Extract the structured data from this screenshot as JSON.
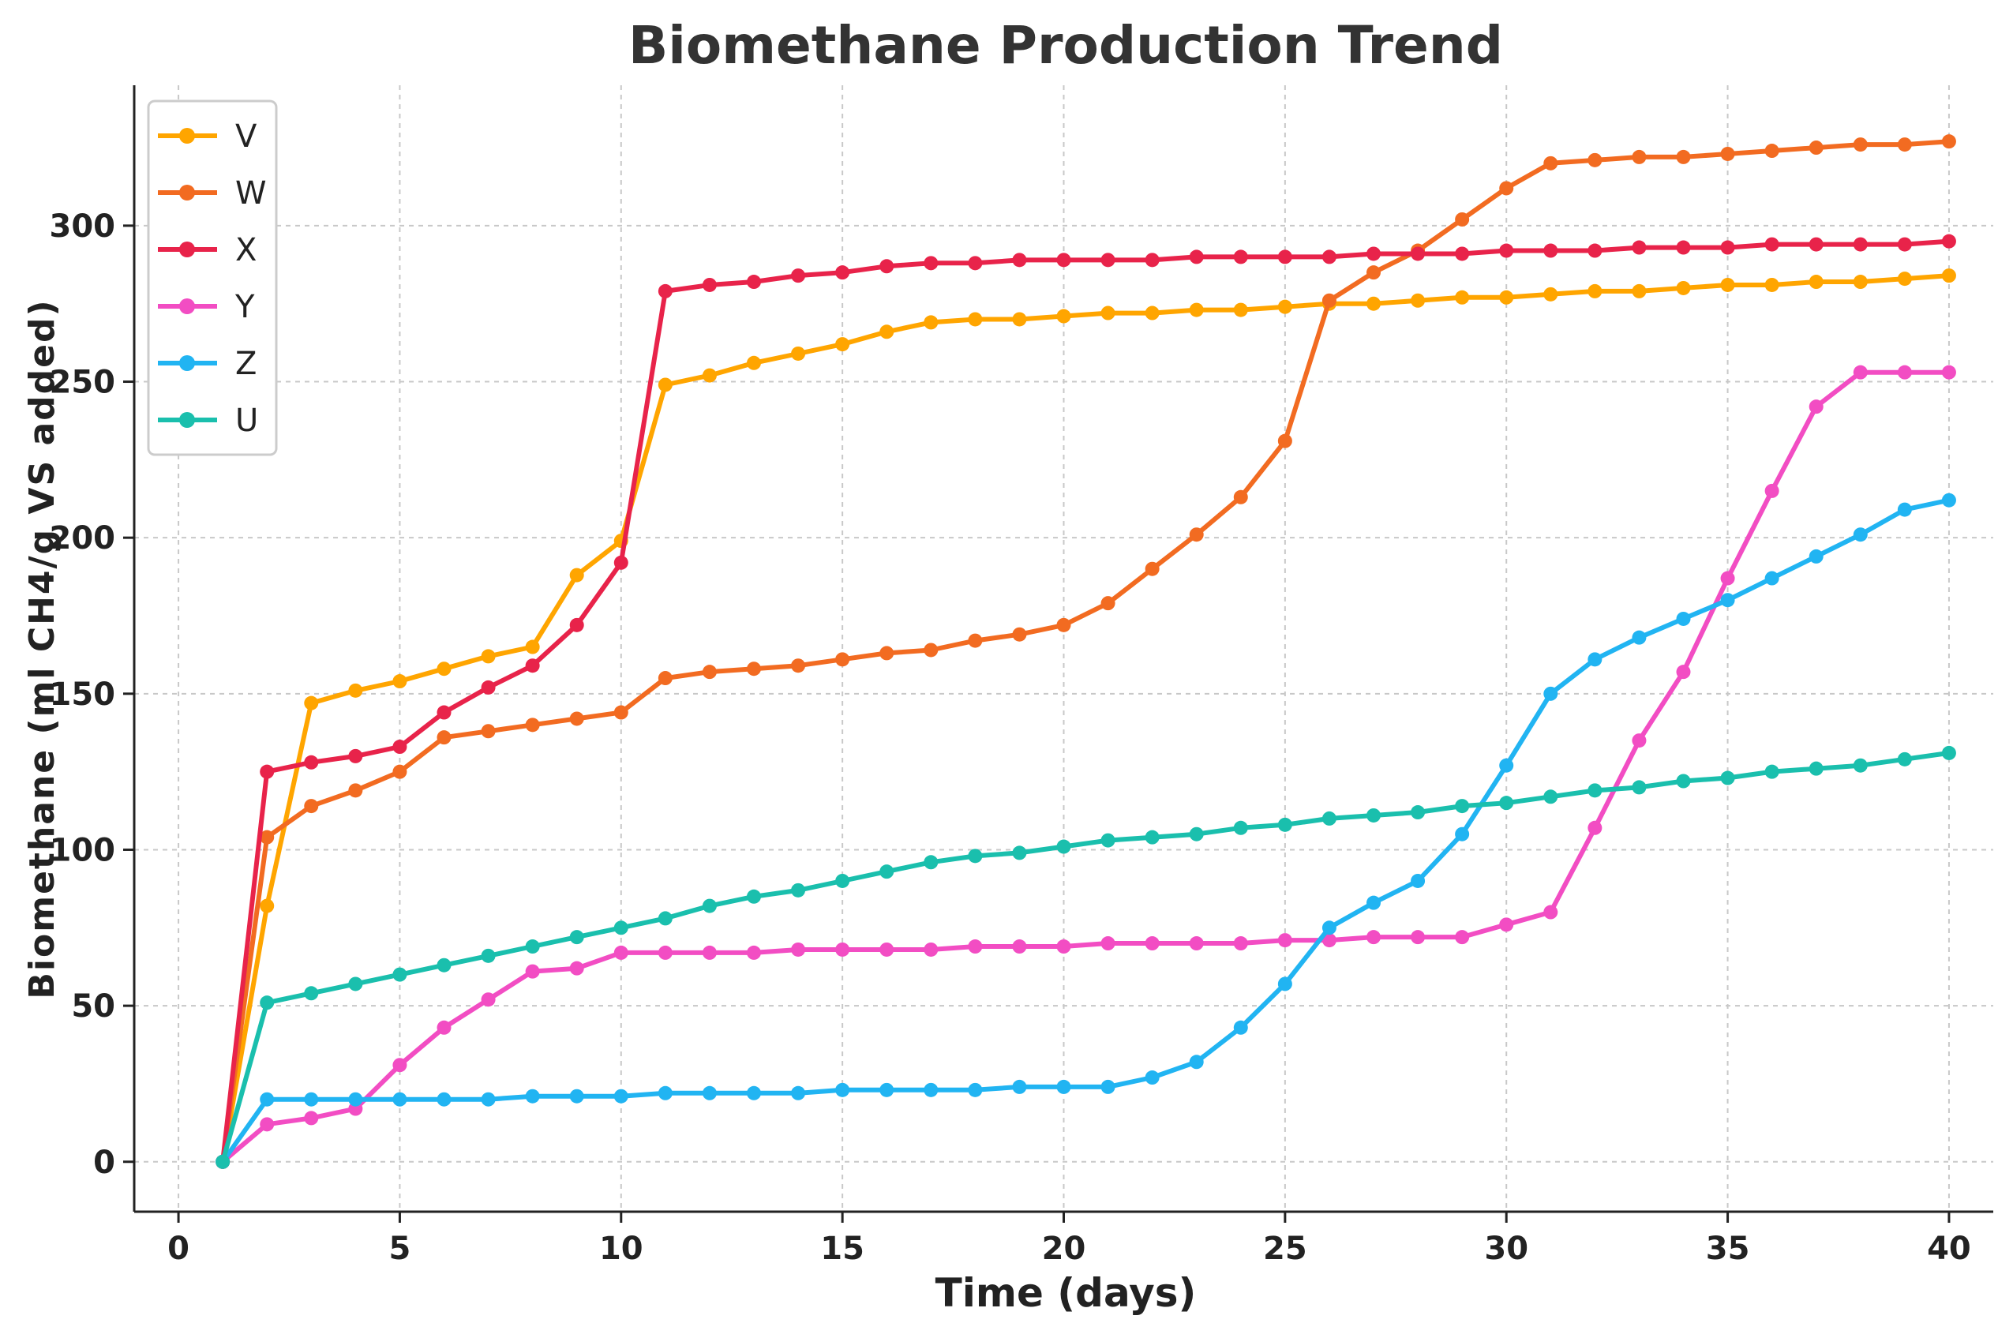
{
  "chart_data": {
    "type": "line",
    "title": "Biomethane Production Trend",
    "xlabel": "Time (days)",
    "ylabel": "Biomethane (ml CH4/g VS added)",
    "xlim": [
      -1,
      41
    ],
    "ylim": [
      -16,
      345
    ],
    "xticks": [
      0,
      5,
      10,
      15,
      20,
      25,
      30,
      35,
      40
    ],
    "yticks": [
      0,
      50,
      100,
      150,
      200,
      250,
      300
    ],
    "grid": true,
    "legend_position": "top-left",
    "x": [
      1,
      2,
      3,
      4,
      5,
      6,
      7,
      8,
      9,
      10,
      11,
      12,
      13,
      14,
      15,
      16,
      17,
      18,
      19,
      20,
      21,
      22,
      23,
      24,
      25,
      26,
      27,
      28,
      29,
      30,
      31,
      32,
      33,
      34,
      35,
      36,
      37,
      38,
      39,
      40
    ],
    "series": [
      {
        "name": "V",
        "color": "#FFA500",
        "values": [
          0,
          82,
          147,
          151,
          154,
          158,
          162,
          165,
          188,
          199,
          249,
          252,
          256,
          259,
          262,
          266,
          269,
          270,
          270,
          271,
          272,
          272,
          273,
          273,
          274,
          275,
          275,
          276,
          277,
          277,
          278,
          279,
          279,
          280,
          281,
          281,
          282,
          282,
          283,
          284
        ]
      },
      {
        "name": "W",
        "color": "#F26B21",
        "values": [
          0,
          104,
          114,
          119,
          125,
          136,
          138,
          140,
          142,
          144,
          155,
          157,
          158,
          159,
          161,
          163,
          164,
          167,
          169,
          172,
          179,
          190,
          201,
          213,
          231,
          276,
          285,
          292,
          302,
          312,
          320,
          321,
          322,
          322,
          323,
          324,
          325,
          326,
          326,
          327
        ]
      },
      {
        "name": "X",
        "color": "#E8234A",
        "values": [
          0,
          125,
          128,
          130,
          133,
          144,
          152,
          159,
          172,
          192,
          279,
          281,
          282,
          284,
          285,
          287,
          288,
          288,
          289,
          289,
          289,
          289,
          290,
          290,
          290,
          290,
          291,
          291,
          291,
          292,
          292,
          292,
          293,
          293,
          293,
          294,
          294,
          294,
          294,
          295
        ]
      },
      {
        "name": "Y",
        "color": "#F24DC3",
        "values": [
          0,
          12,
          14,
          17,
          31,
          43,
          52,
          61,
          62,
          67,
          67,
          67,
          67,
          68,
          68,
          68,
          68,
          69,
          69,
          69,
          70,
          70,
          70,
          70,
          71,
          71,
          72,
          72,
          72,
          76,
          80,
          107,
          135,
          157,
          187,
          215,
          242,
          253,
          253,
          253
        ]
      },
      {
        "name": "Z",
        "color": "#21B4F2",
        "values": [
          0,
          20,
          20,
          20,
          20,
          20,
          20,
          21,
          21,
          21,
          22,
          22,
          22,
          22,
          23,
          23,
          23,
          23,
          24,
          24,
          24,
          27,
          32,
          43,
          57,
          75,
          83,
          90,
          105,
          127,
          150,
          161,
          168,
          174,
          180,
          187,
          194,
          201,
          209,
          212
        ]
      },
      {
        "name": "U",
        "color": "#1ABFAD",
        "values": [
          0,
          51,
          54,
          57,
          60,
          63,
          66,
          69,
          72,
          75,
          78,
          82,
          85,
          87,
          90,
          93,
          96,
          98,
          99,
          101,
          103,
          104,
          105,
          107,
          108,
          110,
          111,
          112,
          114,
          115,
          117,
          119,
          120,
          122,
          123,
          125,
          126,
          127,
          129,
          131
        ]
      }
    ]
  }
}
